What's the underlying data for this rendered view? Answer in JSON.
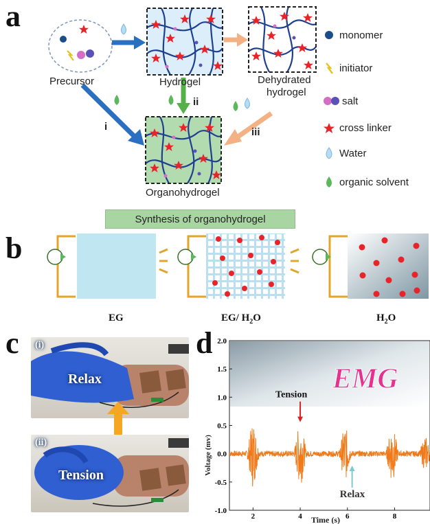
{
  "panel_a": {
    "letter": "a",
    "labels": {
      "precursor": "Precursor",
      "hydrogel": "Hydrogel",
      "dehydrated_line1": "Dehydrated",
      "dehydrated_line2": "hydrogel",
      "organohydrogel": "Organohydrogel",
      "route_i": "i",
      "route_ii": "ii",
      "route_iii": "iii"
    },
    "legend": [
      {
        "icon": "monomer-dot-icon",
        "label": "monomer"
      },
      {
        "icon": "initiator-bolt-icon",
        "label": "initiator"
      },
      {
        "icon": "salt-dots-icon",
        "label": "salt"
      },
      {
        "icon": "red-star-icon",
        "label": "cross linker"
      },
      {
        "icon": "water-drop-icon",
        "label": "Water"
      },
      {
        "icon": "green-drop-icon",
        "label": "organic solvent"
      }
    ],
    "banner": "Synthesis of organohydrogel",
    "colors": {
      "hydrogel_bg": "#dbeefa",
      "organo_bg": "#b3dbb0",
      "arrow_blue": "#2a6fc0",
      "arrow_orange": "#f4b183",
      "arrow_green": "#56b04a",
      "chain": "#1f3f8f",
      "star": "#e8242b"
    }
  },
  "panel_b": {
    "letter": "b",
    "items": [
      {
        "label_main": "EG",
        "label_sub": ""
      },
      {
        "label_main": "EG/ H",
        "label_sub": "2",
        "label_tail": "O"
      },
      {
        "label_main": "H",
        "label_sub": "2",
        "label_tail": "O"
      }
    ]
  },
  "panel_c": {
    "letter": "c",
    "top_tag": "(i)",
    "top_text": "Relax",
    "bottom_tag": "(ii)",
    "bottom_text": "Tension"
  },
  "panel_d": {
    "letter": "d",
    "chart_data": {
      "type": "line",
      "xlabel": "Time (s)",
      "ylabel": "Voltage (mv)",
      "xlim": [
        1,
        9.5
      ],
      "ylim": [
        -1.0,
        2.0
      ],
      "x_ticks": [
        2,
        4,
        6,
        8
      ],
      "y_ticks": [
        2.0,
        1.5,
        1.0,
        0.5,
        0.0,
        -0.5,
        -1.0
      ],
      "y_tick_labels": [
        "2.0",
        "1.5",
        "1.0",
        "0.5",
        "0.0",
        "-0.5",
        "-1.0"
      ],
      "bursts": [
        {
          "center": 2.0,
          "amplitude": 0.65
        },
        {
          "center": 4.0,
          "amplitude": 0.65
        },
        {
          "center": 5.9,
          "amplitude": 0.55
        },
        {
          "center": 7.9,
          "amplitude": 0.58
        },
        {
          "center": 9.3,
          "amplitude": 0.35
        }
      ],
      "baseline_noise": 0.05,
      "series_color": "#f07a1a",
      "banner_text": "EMG",
      "annotations": [
        {
          "text": "Tension",
          "x": 4.0,
          "y": 0.85,
          "arrow_color": "#e02020"
        },
        {
          "text": "Relax",
          "x": 6.2,
          "y": -0.55,
          "arrow_color": "#7ec8d0"
        }
      ]
    }
  }
}
